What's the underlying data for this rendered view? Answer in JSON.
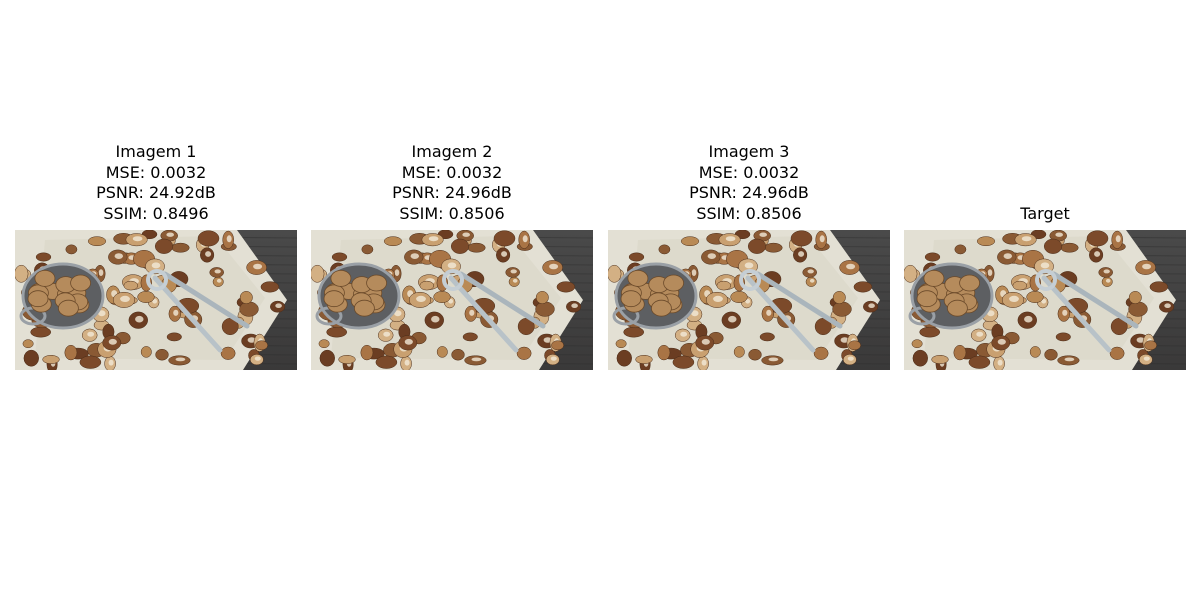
{
  "panels": [
    {
      "lines": [
        "Imagem 1",
        "MSE: 0.0032",
        "PSNR: 24.92dB",
        "SSIM: 0.8496"
      ],
      "image": "photo of assorted nuts (walnuts, hazelnuts, chestnuts) with a bowl and a nutcracker on crumpled paper over a dark wooden table"
    },
    {
      "lines": [
        "Imagem 2",
        "MSE: 0.0032",
        "PSNR: 24.96dB",
        "SSIM: 0.8506"
      ],
      "image": "photo of assorted nuts (walnuts, hazelnuts, chestnuts) with a bowl and a nutcracker on crumpled paper over a dark wooden table"
    },
    {
      "lines": [
        "Imagem 3",
        "MSE: 0.0032",
        "PSNR: 24.96dB",
        "SSIM: 0.8506"
      ],
      "image": "photo of assorted nuts (walnuts, hazelnuts, chestnuts) with a bowl and a nutcracker on crumpled paper over a dark wooden table"
    },
    {
      "lines": [
        "Target"
      ],
      "image": "photo of assorted nuts (walnuts, hazelnuts, chestnuts) with a bowl and a nutcracker on crumpled paper over a dark wooden table"
    }
  ]
}
